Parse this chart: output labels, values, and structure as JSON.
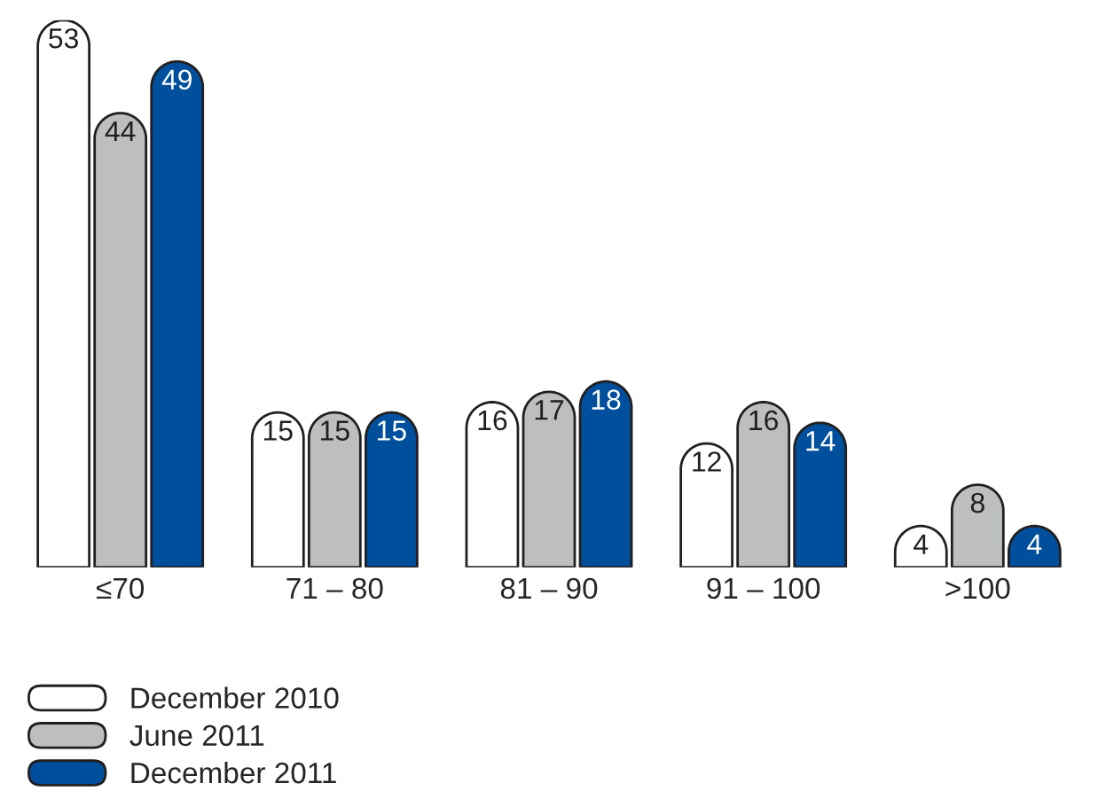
{
  "chart_data": {
    "type": "bar",
    "categories": [
      "≤70",
      "71 – 80",
      "81 – 90",
      "91 – 100",
      ">100"
    ],
    "series": [
      {
        "name": "December 2010",
        "color": "#ffffff",
        "values": [
          53,
          15,
          16,
          12,
          4
        ]
      },
      {
        "name": "June 2011",
        "color": "#bcbec0",
        "values": [
          44,
          15,
          17,
          16,
          8
        ]
      },
      {
        "name": "December 2011",
        "color": "#004f9c",
        "values": [
          49,
          15,
          18,
          14,
          4
        ]
      }
    ],
    "data_labels": true,
    "grid": false,
    "legend": "bottom left"
  }
}
